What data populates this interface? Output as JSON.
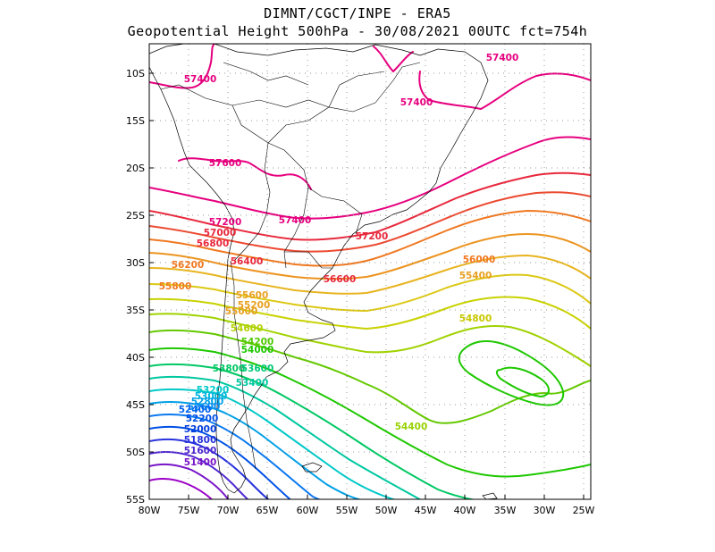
{
  "header": {
    "line1": "DIMNT/CGCT/INPE  -  ERA5",
    "line2": "Geopotential Height 500hPa -  30/08/2021 00UTC fct=754h"
  },
  "axes": {
    "x_ticks": [
      "80W",
      "75W",
      "70W",
      "65W",
      "60W",
      "55W",
      "50W",
      "45W",
      "40W",
      "35W",
      "30W",
      "25W"
    ],
    "y_ticks": [
      "10S",
      "15S",
      "20S",
      "25S",
      "30S",
      "35S",
      "40S",
      "45S",
      "50S",
      "55S"
    ]
  },
  "contour_labels": [
    {
      "text": "57400",
      "color": "#e6007e"
    },
    {
      "text": "57400",
      "color": "#e6007e"
    },
    {
      "text": "57400",
      "color": "#e6007e"
    },
    {
      "text": "57600",
      "color": "#e6007e"
    },
    {
      "text": "57400",
      "color": "#e6007e"
    },
    {
      "text": "57200",
      "color": "#e6007e"
    },
    {
      "text": "57200",
      "color": "#e8283c"
    },
    {
      "text": "57000",
      "color": "#e8283c"
    },
    {
      "text": "56800",
      "color": "#e8283c"
    },
    {
      "text": "56600",
      "color": "#e8283c"
    },
    {
      "text": "56400",
      "color": "#e8283c"
    },
    {
      "text": "56200",
      "color": "#f07820"
    },
    {
      "text": "56000",
      "color": "#f07820"
    },
    {
      "text": "55800",
      "color": "#f07820"
    },
    {
      "text": "55600",
      "color": "#e8a020"
    },
    {
      "text": "55400",
      "color": "#e8a020"
    },
    {
      "text": "55200",
      "color": "#e8a020"
    },
    {
      "text": "55000",
      "color": "#e8a020"
    },
    {
      "text": "54800",
      "color": "#c8c800"
    },
    {
      "text": "54600",
      "color": "#b4d200"
    },
    {
      "text": "54400",
      "color": "#96d200"
    },
    {
      "text": "54200",
      "color": "#50c800"
    },
    {
      "text": "54000",
      "color": "#1ec800"
    },
    {
      "text": "53800",
      "color": "#00c864"
    },
    {
      "text": "53600",
      "color": "#00c878"
    },
    {
      "text": "53400",
      "color": "#00c8a0"
    },
    {
      "text": "53200",
      "color": "#00c8c8"
    },
    {
      "text": "53000",
      "color": "#00b4dc"
    },
    {
      "text": "52800",
      "color": "#00a0e6"
    },
    {
      "text": "52600",
      "color": "#0a8cf0"
    },
    {
      "text": "52400",
      "color": "#0064f0"
    },
    {
      "text": "52200",
      "color": "#0050e6"
    },
    {
      "text": "52000",
      "color": "#003cdc"
    },
    {
      "text": "51800",
      "color": "#2832dc"
    },
    {
      "text": "51600",
      "color": "#5028d2"
    },
    {
      "text": "51400",
      "color": "#7814c8"
    }
  ],
  "levels": [
    {
      "color": "#e6007e"
    },
    {
      "color": "#e8283c"
    },
    {
      "color": "#ec4a30"
    },
    {
      "color": "#f07820"
    },
    {
      "color": "#ec9420"
    },
    {
      "color": "#e8b420"
    },
    {
      "color": "#dcc814"
    },
    {
      "color": "#c8d200"
    },
    {
      "color": "#a0d200"
    },
    {
      "color": "#64c800"
    },
    {
      "color": "#1ec800"
    },
    {
      "color": "#00c864"
    },
    {
      "color": "#00c8a0"
    },
    {
      "color": "#00c8c8"
    },
    {
      "color": "#00a0e6"
    },
    {
      "color": "#0a78f0"
    },
    {
      "color": "#0050e6"
    },
    {
      "color": "#2832dc"
    },
    {
      "color": "#5028d2"
    },
    {
      "color": "#7814c8"
    },
    {
      "color": "#9b00c8"
    }
  ]
}
